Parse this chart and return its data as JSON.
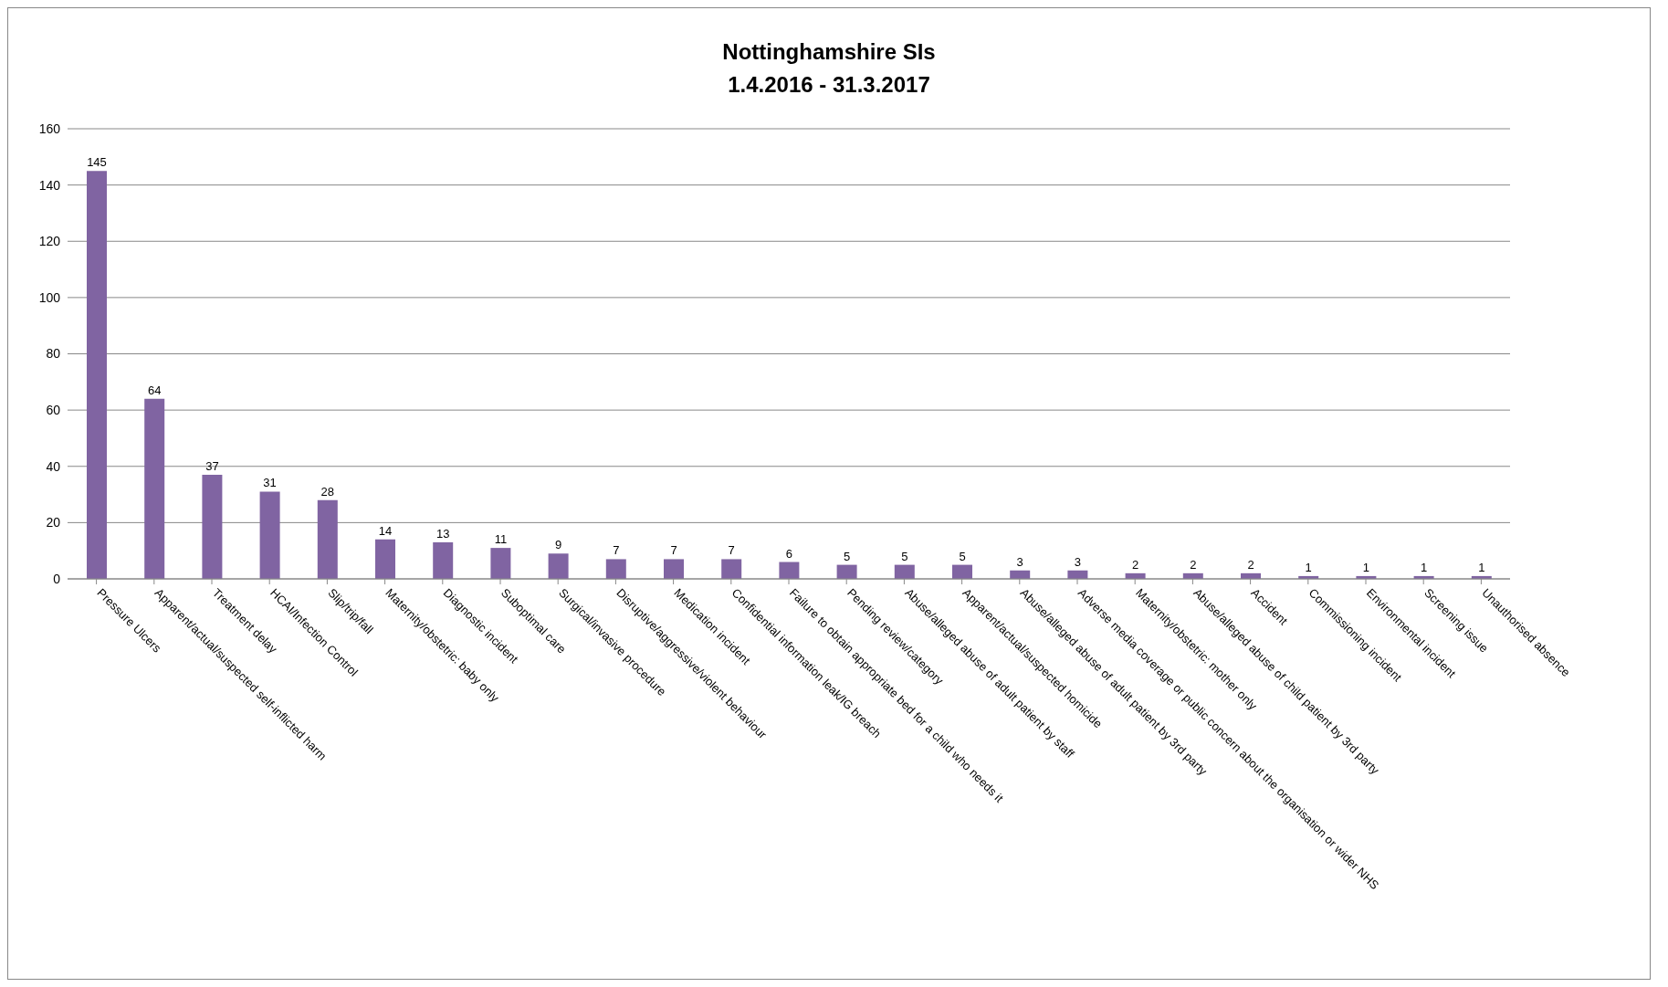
{
  "chart_data": {
    "type": "bar",
    "title": "Nottinghamshire SIs",
    "subtitle": "1.4.2016 - 31.3.2017",
    "categories": [
      "Pressure Ulcers",
      "Apparent/actual/suspected self-inflicted harm",
      "Treatment delay",
      "HCAI/Infection Control",
      "Slip/trip/fall",
      "Maternity/obstetric: baby only",
      "Diagnostic incident",
      "Suboptimal care",
      "Surgical/invasive procedure",
      "Disruptive/aggressive/violent behaviour",
      "Medication incident",
      "Confidential information leak/IG breach",
      "Failure to obtain appropriate bed for a child who needs it",
      "Pending review/category",
      "Abuse/alleged abuse of adult patient by staff",
      "Apparent/actual/suspected homicide",
      "Abuse/alleged abuse of adult patient by 3rd party",
      "Adverse media coverage or public concern about the organisation or wider NHS",
      "Maternity/obstetric: mother only",
      "Abuse/alleged abuse of child patient by 3rd party",
      "Accident",
      "Commissioning incident",
      "Environmental incident",
      "Screening issue",
      "Unauthorised absence"
    ],
    "values": [
      145,
      64,
      37,
      31,
      28,
      14,
      13,
      11,
      9,
      7,
      7,
      7,
      6,
      5,
      5,
      5,
      3,
      3,
      2,
      2,
      2,
      1,
      1,
      1,
      1
    ],
    "color": "#8064a2",
    "ylim": [
      0,
      160
    ],
    "yticks": [
      0,
      20,
      40,
      60,
      80,
      100,
      120,
      140,
      160
    ],
    "grid": "y",
    "data_labels": true
  }
}
